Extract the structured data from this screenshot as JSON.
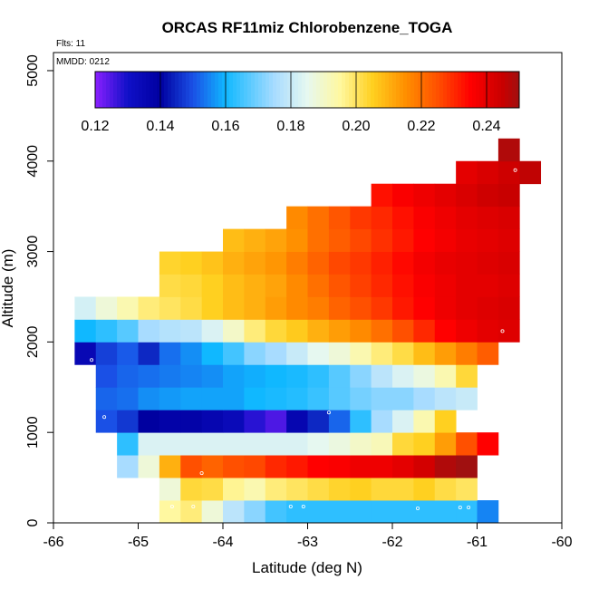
{
  "chart_data": {
    "type": "heatmap",
    "title": "ORCAS RF11miz Chlorobenzene_TOGA",
    "xlabel": "Latitude (deg N)",
    "ylabel": "Altitude (m)",
    "flights_label": "Flts: 11",
    "date_label": "MMDD: 0212",
    "xlim": [
      -66,
      -60
    ],
    "ylim": [
      0,
      5200
    ],
    "x_ticks": [
      -66,
      -65,
      -64,
      -63,
      -62,
      -61,
      -60
    ],
    "y_ticks": [
      0,
      1000,
      2000,
      3000,
      4000,
      5000
    ],
    "colorbar": {
      "range": [
        0.12,
        0.25
      ],
      "ticks": [
        "0.12",
        "0.14",
        "0.16",
        "0.18",
        "0.20",
        "0.22",
        "0.24"
      ],
      "tick_values": [
        0.12,
        0.14,
        0.16,
        0.18,
        0.2,
        0.22,
        0.24
      ],
      "stops": [
        [
          0.12,
          "#8a1fff"
        ],
        [
          0.13,
          "#1010c8"
        ],
        [
          0.14,
          "#0000a0"
        ],
        [
          0.15,
          "#1a50e6"
        ],
        [
          0.16,
          "#10b8ff"
        ],
        [
          0.175,
          "#a8dcff"
        ],
        [
          0.185,
          "#e6f8f0"
        ],
        [
          0.195,
          "#fff8a0"
        ],
        [
          0.205,
          "#ffd020"
        ],
        [
          0.215,
          "#ff9000"
        ],
        [
          0.225,
          "#ff5000"
        ],
        [
          0.235,
          "#ff0000"
        ],
        [
          0.245,
          "#c80000"
        ],
        [
          0.25,
          "#a01010"
        ]
      ]
    },
    "cell_width_deg": 0.25,
    "cell_height_m": 250,
    "rows": [
      {
        "alt": 0,
        "lat_start": -64.75,
        "values": [
          0.195,
          0.198,
          0.188,
          0.178,
          0.172,
          0.165,
          0.163,
          0.163,
          0.163,
          0.163,
          0.163,
          0.163,
          0.163,
          0.163,
          0.163,
          0.155
        ]
      },
      {
        "alt": 250,
        "lat_start": -64.75,
        "values": [
          0.188,
          0.203,
          0.202,
          0.196,
          0.193,
          0.198,
          0.2,
          0.202,
          0.204,
          0.205,
          0.203,
          0.203,
          0.205,
          0.202,
          0.2
        ]
      },
      {
        "alt": 500,
        "lat_start": -65.25,
        "values": [
          0.175,
          0.188,
          0.21,
          0.225,
          0.222,
          0.225,
          0.226,
          0.23,
          0.232,
          0.235,
          0.236,
          0.238,
          0.238,
          0.24,
          0.243,
          0.248,
          0.25
        ]
      },
      {
        "alt": 750,
        "lat_start": -65.25,
        "values": [
          0.163,
          0.183,
          0.183,
          0.183,
          0.183,
          0.183,
          0.183,
          0.183,
          0.183,
          0.185,
          0.187,
          0.19,
          0.192,
          0.203,
          0.205,
          0.213,
          0.225,
          0.235
        ]
      },
      {
        "alt": 1000,
        "lat_start": -65.5,
        "values": [
          0.15,
          0.147,
          0.14,
          0.138,
          0.138,
          0.136,
          0.134,
          0.128,
          0.125,
          0.136,
          0.145,
          0.152,
          0.163,
          0.175,
          0.183,
          0.193,
          0.205
        ]
      },
      {
        "alt": 1250,
        "lat_start": -65.5,
        "values": [
          0.152,
          0.153,
          0.156,
          0.157,
          0.158,
          0.158,
          0.158,
          0.16,
          0.161,
          0.162,
          0.164,
          0.167,
          0.17,
          0.172,
          0.172,
          0.175,
          0.178,
          0.18
        ]
      },
      {
        "alt": 1500,
        "lat_start": -65.5,
        "values": [
          0.15,
          0.152,
          0.153,
          0.154,
          0.155,
          0.156,
          0.158,
          0.159,
          0.16,
          0.161,
          0.163,
          0.167,
          0.172,
          0.178,
          0.183,
          0.187,
          0.193,
          0.203
        ]
      },
      {
        "alt": 1750,
        "lat_start": -65.75,
        "values": [
          0.135,
          0.148,
          0.151,
          0.145,
          0.153,
          0.156,
          0.16,
          0.165,
          0.172,
          0.175,
          0.18,
          0.185,
          0.188,
          0.193,
          0.198,
          0.202,
          0.208,
          0.213,
          0.218,
          0.223
        ]
      },
      {
        "alt": 2000,
        "lat_start": -65.75,
        "values": [
          0.16,
          0.163,
          0.167,
          0.175,
          0.177,
          0.178,
          0.183,
          0.19,
          0.198,
          0.203,
          0.206,
          0.21,
          0.213,
          0.216,
          0.22,
          0.225,
          0.23,
          0.235,
          0.238,
          0.24,
          0.241
        ]
      },
      {
        "alt": 2250,
        "lat_start": -65.75,
        "values": [
          0.182,
          0.188,
          0.193,
          0.198,
          0.2,
          0.202,
          0.205,
          0.208,
          0.21,
          0.213,
          0.216,
          0.218,
          0.222,
          0.225,
          0.228,
          0.232,
          0.235,
          0.238,
          0.24,
          0.241,
          0.242
        ]
      },
      {
        "alt": 2500,
        "lat_start": -64.75,
        "values": [
          0.202,
          0.203,
          0.205,
          0.208,
          0.21,
          0.212,
          0.216,
          0.22,
          0.224,
          0.227,
          0.23,
          0.233,
          0.236,
          0.238,
          0.24,
          0.24,
          0.241
        ]
      },
      {
        "alt": 2750,
        "lat_start": -64.75,
        "values": [
          0.204,
          0.205,
          0.207,
          0.21,
          0.212,
          0.214,
          0.218,
          0.222,
          0.226,
          0.228,
          0.231,
          0.234,
          0.237,
          0.239,
          0.24,
          0.241,
          0.242
        ]
      },
      {
        "alt": 3000,
        "lat_start": -64.0,
        "values": [
          0.208,
          0.21,
          0.212,
          0.215,
          0.22,
          0.223,
          0.226,
          0.229,
          0.232,
          0.235,
          0.237,
          0.239,
          0.24,
          0.241
        ]
      },
      {
        "alt": 3250,
        "lat_start": -63.25,
        "values": [
          0.216,
          0.22,
          0.224,
          0.228,
          0.23,
          0.233,
          0.236,
          0.238,
          0.24,
          0.241,
          0.242
        ]
      },
      {
        "alt": 3500,
        "lat_start": -62.25,
        "values": [
          0.233,
          0.236,
          0.238,
          0.24,
          0.242,
          0.244,
          0.245
        ]
      },
      {
        "alt": 3750,
        "lat_start": -61.25,
        "values": [
          0.24,
          0.242,
          0.244,
          0.246
        ]
      },
      {
        "alt": 4000,
        "lat_start": -60.75,
        "values": [
          0.248
        ]
      }
    ],
    "sample_points": [
      [
        -65.55,
        1800
      ],
      [
        -65.4,
        1170
      ],
      [
        -64.25,
        550
      ],
      [
        -64.6,
        180
      ],
      [
        -64.35,
        180
      ],
      [
        -63.2,
        180
      ],
      [
        -63.05,
        180
      ],
      [
        -62.75,
        1220
      ],
      [
        -61.7,
        160
      ],
      [
        -61.2,
        170
      ],
      [
        -61.1,
        170
      ],
      [
        -60.95,
        620
      ],
      [
        -60.65,
        1260
      ],
      [
        -60.7,
        2120
      ],
      [
        -60.55,
        3900
      ]
    ]
  }
}
